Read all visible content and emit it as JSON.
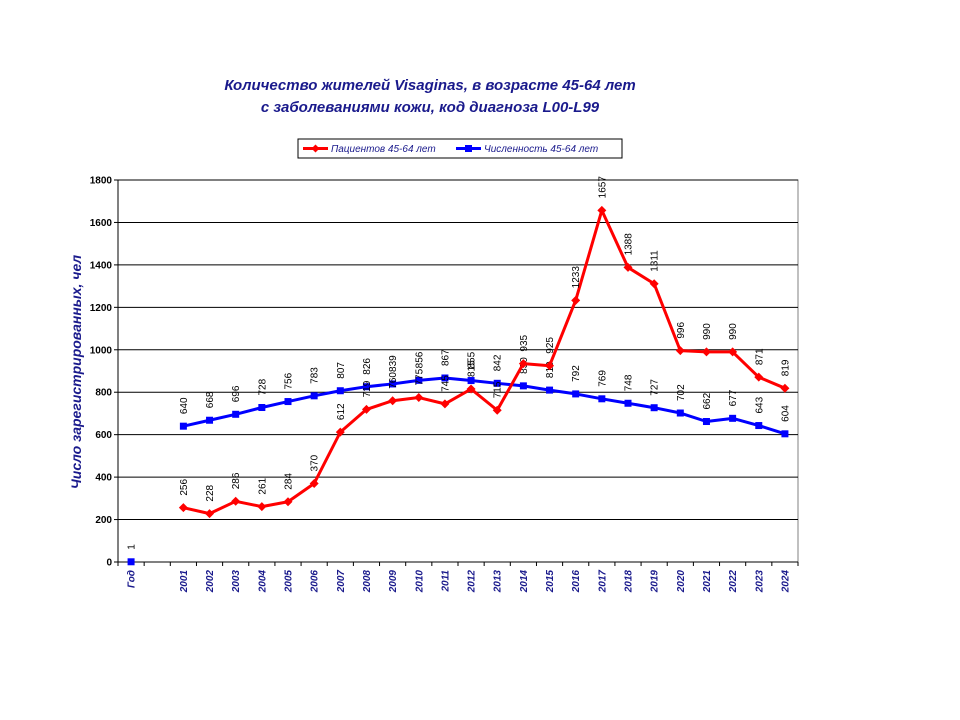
{
  "chart_data": {
    "type": "line",
    "title": [
      "Количество жителей Visaginas, в возрасте 45-64 лет",
      "с заболеваниями кожи, код диагноза L00-L99"
    ],
    "ylabel": "Число зарегистрированных, чел",
    "xlabel": "",
    "ylim": [
      0,
      1800
    ],
    "yticks": [
      "0",
      "200",
      "400",
      "600",
      "800",
      "1000",
      "1200",
      "1400",
      "1600",
      "1800"
    ],
    "categories": [
      "Год",
      "",
      "2001",
      "2002",
      "2003",
      "2004",
      "2005",
      "2006",
      "2007",
      "2008",
      "2009",
      "2010",
      "2011",
      "2012",
      "2013",
      "2014",
      "2015",
      "2016",
      "2017",
      "2018",
      "2019",
      "2020",
      "2021",
      "2022",
      "2023",
      "2024"
    ],
    "legend_position": "top-center",
    "grid": true,
    "series": [
      {
        "name": "Пациентов 45-64 лет",
        "color": "#ff0000",
        "marker": "diamond",
        "values": [
          null,
          null,
          256,
          228,
          286,
          261,
          284,
          370,
          612,
          719,
          760,
          775,
          745,
          815,
          715,
          935,
          925,
          1233,
          1657,
          1388,
          1311,
          996,
          990,
          990,
          871,
          819
        ],
        "labels": [
          null,
          null,
          "256",
          "228",
          "286",
          "261",
          "284",
          "370",
          "612",
          "719",
          "760",
          "775",
          "745",
          "815",
          "715",
          "935",
          "925",
          "1233",
          "1657",
          "1388",
          "1311",
          "996",
          "990",
          "990",
          "871",
          "819"
        ]
      },
      {
        "name": "Численность 45-64 лет",
        "color": "#0000ff",
        "marker": "square",
        "values": [
          1,
          null,
          640,
          668,
          696,
          728,
          756,
          783,
          807,
          826,
          839,
          856,
          867,
          855,
          842,
          830,
          810,
          792,
          769,
          748,
          727,
          702,
          662,
          677,
          643,
          604
        ],
        "labels": [
          "1",
          null,
          "640",
          "668",
          "696",
          "728",
          "756",
          "783",
          "807",
          "826",
          "839",
          "856",
          "867",
          "855",
          "842",
          "830",
          "810",
          "792",
          "769",
          "748",
          "727",
          "702",
          "662",
          "677",
          "643",
          "604"
        ]
      }
    ]
  }
}
